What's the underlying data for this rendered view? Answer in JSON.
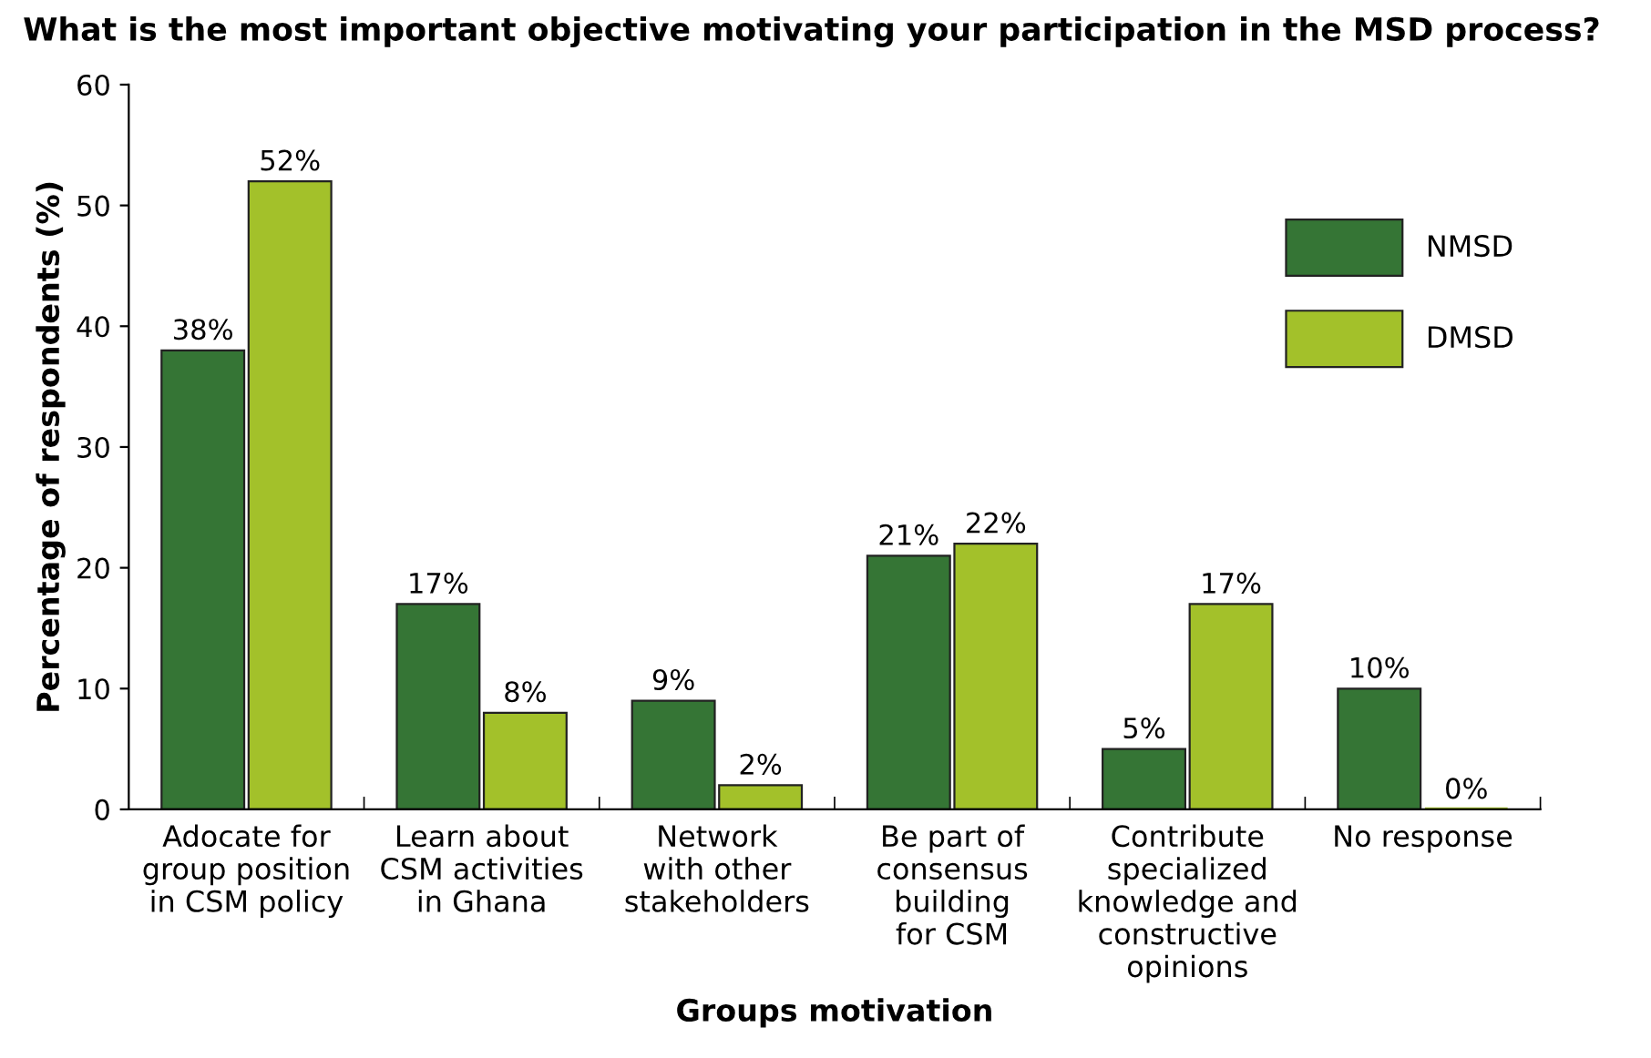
{
  "chart_data": {
    "type": "bar",
    "title": "What is the most important objective motivating your participation in the MSD process?",
    "xlabel": "Groups motivation",
    "ylabel": "Percentage of respondents (%)",
    "categories": [
      "Adocate for\ngroup position\nin CSM policy",
      "Learn about\nCSM activities\nin Ghana",
      "Network\nwith other\nstakeholders",
      "Be part of\nconsensus\nbuilding\nfor CSM",
      "Contribute\nspecialized\nknowledge and\nconstructive\nopinions",
      "No response"
    ],
    "series": [
      {
        "name": "NMSD",
        "color": "#357535",
        "values": [
          38,
          17,
          9,
          21,
          5,
          10
        ],
        "value_labels": [
          "38%",
          "17%",
          "9%",
          "21%",
          "5%",
          "10%"
        ]
      },
      {
        "name": "DMSD",
        "color": "#a3c12a",
        "values": [
          52,
          8,
          2,
          22,
          17,
          0
        ],
        "value_labels": [
          "52%",
          "8%",
          "2%",
          "22%",
          "17%",
          "0%"
        ]
      }
    ],
    "ylim": [
      0,
      60
    ],
    "yticks": [
      0,
      10,
      20,
      30,
      40,
      50,
      60
    ],
    "grid": false,
    "legend": "top right"
  }
}
